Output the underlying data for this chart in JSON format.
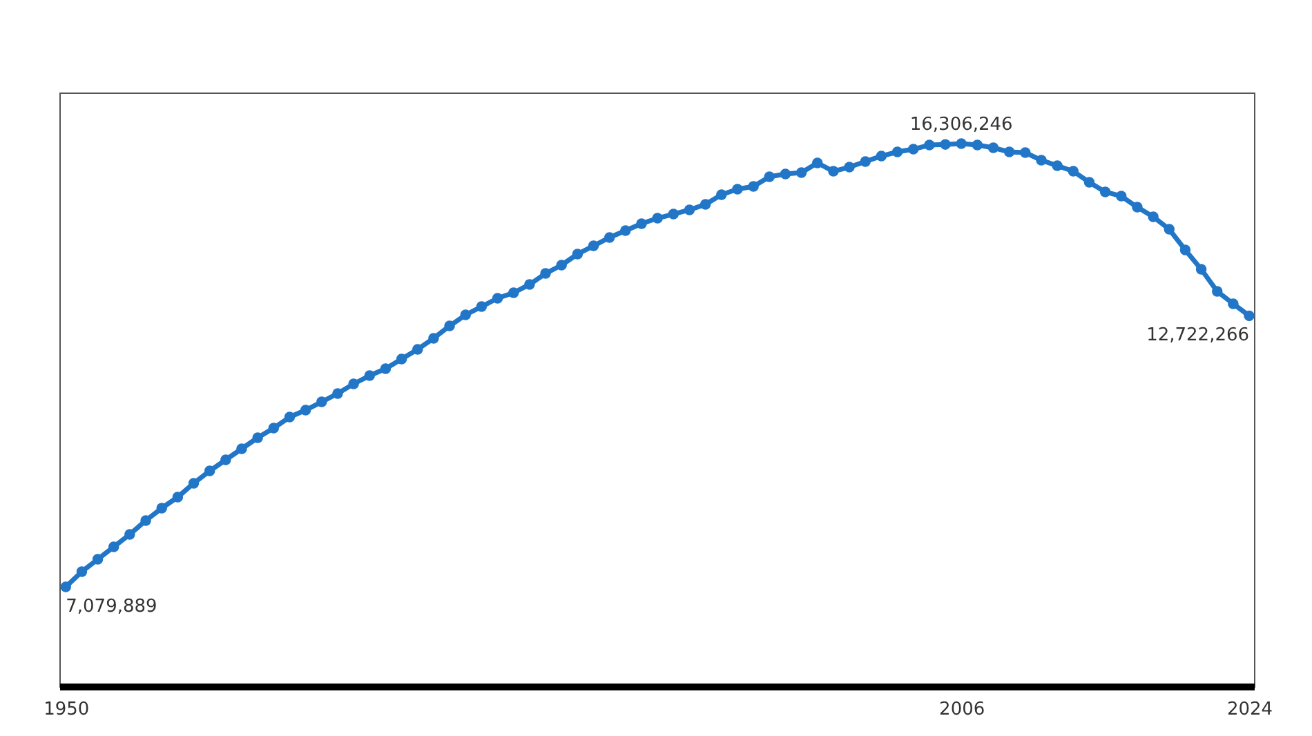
{
  "chart_data": {
    "type": "line",
    "x": [
      1950,
      1951,
      1952,
      1953,
      1954,
      1955,
      1956,
      1957,
      1958,
      1959,
      1960,
      1961,
      1962,
      1963,
      1964,
      1965,
      1966,
      1967,
      1968,
      1969,
      1970,
      1971,
      1972,
      1973,
      1974,
      1975,
      1976,
      1977,
      1978,
      1979,
      1980,
      1981,
      1982,
      1983,
      1984,
      1985,
      1986,
      1987,
      1988,
      1989,
      1990,
      1991,
      1992,
      1993,
      1994,
      1995,
      1996,
      1997,
      1998,
      1999,
      2000,
      2001,
      2002,
      2003,
      2004,
      2005,
      2006,
      2007,
      2008,
      2009,
      2010,
      2011,
      2012,
      2013,
      2014,
      2015,
      2016,
      2017,
      2018,
      2019,
      2020,
      2021,
      2022,
      2023,
      2024
    ],
    "series": [
      {
        "color": "#2176c7",
        "values": [
          7079889,
          7396000,
          7655000,
          7913000,
          8172000,
          8460000,
          8718000,
          8948000,
          9236000,
          9494000,
          9724000,
          9954000,
          10184000,
          10385000,
          10615000,
          10759000,
          10931000,
          11104000,
          11305000,
          11477000,
          11621000,
          11822000,
          12024000,
          12253000,
          12512000,
          12742000,
          12914000,
          13087000,
          13202000,
          13374000,
          13604000,
          13777000,
          14007000,
          14179000,
          14352000,
          14495000,
          14639000,
          14754000,
          14840000,
          14927000,
          15041000,
          15243000,
          15358000,
          15415000,
          15616000,
          15674000,
          15703000,
          15904000,
          15731000,
          15817000,
          15932000,
          16047000,
          16134000,
          16191000,
          16277000,
          16290000,
          16306246,
          16277000,
          16220000,
          16134000,
          16120000,
          15961000,
          15846000,
          15731000,
          15502000,
          15301000,
          15214000,
          14984000,
          14783000,
          14524000,
          14093000,
          13691000,
          13231000,
          12972000,
          12722266
        ],
        "value_labels": [
          "7,079,889",
          null,
          null,
          null,
          null,
          null,
          null,
          null,
          null,
          null,
          null,
          null,
          null,
          null,
          null,
          null,
          null,
          null,
          null,
          null,
          null,
          null,
          null,
          null,
          null,
          null,
          null,
          null,
          null,
          null,
          null,
          null,
          null,
          null,
          null,
          null,
          null,
          null,
          null,
          null,
          null,
          null,
          null,
          null,
          null,
          null,
          null,
          null,
          null,
          null,
          null,
          null,
          null,
          null,
          null,
          null,
          "16,306,246",
          null,
          null,
          null,
          null,
          null,
          null,
          null,
          null,
          null,
          null,
          null,
          null,
          null,
          null,
          null,
          null,
          null,
          "12,722,266"
        ]
      }
    ],
    "xlim": [
      1949.6,
      2024.3
    ],
    "xticks": [
      1950,
      2006,
      2024
    ],
    "ylim": [
      5010000,
      17370000
    ],
    "tick_labels": "x",
    "marker": "circle",
    "line_style": "solid"
  }
}
